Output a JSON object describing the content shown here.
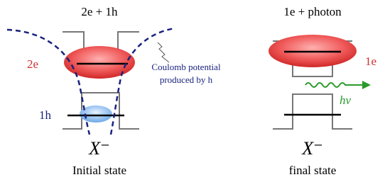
{
  "left": {
    "title": "2e + 1h",
    "electron_label": "2e",
    "hole_label": "1h",
    "annotation": [
      "Coulomb potential",
      "produced by h"
    ],
    "symbol": "X⁻",
    "caption": "Initial state"
  },
  "right": {
    "title": "1e + photon",
    "electron_label": "1e",
    "photon_label": "hν",
    "symbol": "X⁻",
    "caption": "final state"
  }
}
